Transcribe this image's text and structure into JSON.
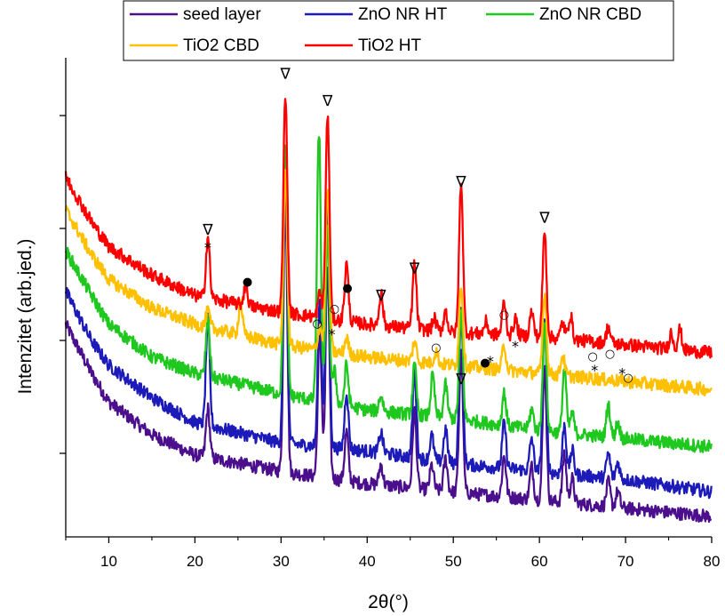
{
  "chart_data": {
    "type": "line",
    "title": "",
    "xlabel": "2θ(°)",
    "ylabel": "Intenzitet (arb.jed.)",
    "xlim": [
      5,
      80
    ],
    "ylim": [
      0,
      100
    ],
    "x_ticks": [
      10,
      20,
      30,
      40,
      50,
      60,
      70,
      80
    ],
    "x_tick_labels": [
      "10",
      "20",
      "30",
      "40",
      "50",
      "60",
      "70",
      "80"
    ],
    "y_tick_labels_shown": false,
    "grid": false,
    "legend": {
      "placement": "top",
      "entries": [
        "seed layer",
        "ZnO NR HT",
        "ZnO NR CBD",
        "TiO2 CBD",
        "TiO2 HT"
      ]
    },
    "series": [
      {
        "name": "seed layer",
        "color": "#4b0e8c",
        "baseline": [
          [
            5,
            52
          ],
          [
            8,
            40
          ],
          [
            10,
            33
          ],
          [
            15,
            25
          ],
          [
            20,
            20
          ],
          [
            30,
            16
          ],
          [
            40,
            13
          ],
          [
            50,
            11
          ],
          [
            60,
            9
          ],
          [
            70,
            7
          ],
          [
            80,
            5
          ]
        ],
        "peaks": [
          [
            21.5,
            12
          ],
          [
            30.5,
            68
          ],
          [
            34.5,
            36
          ],
          [
            35.4,
            52
          ],
          [
            37.6,
            12
          ],
          [
            41.6,
            5
          ],
          [
            45.5,
            19
          ],
          [
            47.5,
            6
          ],
          [
            49.1,
            8
          ],
          [
            50.9,
            34
          ],
          [
            55.9,
            10
          ],
          [
            59.1,
            8
          ],
          [
            60.6,
            33
          ],
          [
            62.9,
            12
          ],
          [
            63.8,
            6
          ],
          [
            68.0,
            6
          ],
          [
            69.1,
            4
          ]
        ]
      },
      {
        "name": "ZnO NR HT",
        "color": "#1c1ab8",
        "baseline": [
          [
            5,
            60
          ],
          [
            8,
            48
          ],
          [
            10,
            42
          ],
          [
            15,
            34
          ],
          [
            20,
            28
          ],
          [
            30,
            23
          ],
          [
            40,
            21
          ],
          [
            50,
            18
          ],
          [
            60,
            16
          ],
          [
            70,
            14
          ],
          [
            80,
            11
          ]
        ],
        "peaks": [
          [
            21.5,
            26
          ],
          [
            30.5,
            72
          ],
          [
            34.5,
            36
          ],
          [
            35.4,
            58
          ],
          [
            37.6,
            14
          ],
          [
            41.6,
            5
          ],
          [
            45.5,
            21
          ],
          [
            47.5,
            6
          ],
          [
            49.1,
            8
          ],
          [
            50.9,
            38
          ],
          [
            55.9,
            11
          ],
          [
            59.1,
            8
          ],
          [
            60.6,
            38
          ],
          [
            62.9,
            12
          ],
          [
            63.8,
            6
          ],
          [
            68.0,
            6
          ],
          [
            69.1,
            4
          ]
        ]
      },
      {
        "name": "ZnO NR CBD",
        "color": "#1ec81e",
        "baseline": [
          [
            5,
            70
          ],
          [
            8,
            59
          ],
          [
            10,
            52
          ],
          [
            15,
            44
          ],
          [
            20,
            40
          ],
          [
            30,
            35
          ],
          [
            40,
            31
          ],
          [
            50,
            29
          ],
          [
            60,
            26
          ],
          [
            70,
            24
          ],
          [
            80,
            22
          ]
        ],
        "peaks": [
          [
            21.5,
            14
          ],
          [
            30.5,
            60
          ],
          [
            34.4,
            66
          ],
          [
            35.4,
            42
          ],
          [
            36.2,
            8
          ],
          [
            37.6,
            10
          ],
          [
            41.6,
            4
          ],
          [
            45.5,
            12
          ],
          [
            47.6,
            10
          ],
          [
            49.1,
            8
          ],
          [
            50.9,
            26
          ],
          [
            55.9,
            8
          ],
          [
            59.1,
            5
          ],
          [
            60.6,
            26
          ],
          [
            62.9,
            16
          ],
          [
            63.8,
            5
          ],
          [
            68.0,
            8
          ],
          [
            69.1,
            4
          ]
        ]
      },
      {
        "name": "TiO2 CBD",
        "color": "#ffc000",
        "baseline": [
          [
            5,
            80
          ],
          [
            8,
            69
          ],
          [
            10,
            63
          ],
          [
            15,
            56
          ],
          [
            20,
            52
          ],
          [
            30,
            47
          ],
          [
            40,
            44
          ],
          [
            50,
            42
          ],
          [
            60,
            40
          ],
          [
            70,
            38
          ],
          [
            80,
            36
          ]
        ],
        "peaks": [
          [
            21.5,
            4
          ],
          [
            25.3,
            8
          ],
          [
            30.5,
            42
          ],
          [
            34.5,
            6
          ],
          [
            35.4,
            40
          ],
          [
            37.6,
            4
          ],
          [
            45.5,
            5
          ],
          [
            48.0,
            3
          ],
          [
            50.9,
            20
          ],
          [
            55.9,
            6
          ],
          [
            60.6,
            20
          ],
          [
            62.7,
            5
          ]
        ]
      },
      {
        "name": "TiO2 HT",
        "color": "#ff0000",
        "baseline": [
          [
            5,
            88
          ],
          [
            8,
            77
          ],
          [
            10,
            71
          ],
          [
            15,
            64
          ],
          [
            20,
            59
          ],
          [
            30,
            55
          ],
          [
            40,
            52
          ],
          [
            50,
            50
          ],
          [
            60,
            49
          ],
          [
            70,
            47
          ],
          [
            80,
            45
          ]
        ],
        "peaks": [
          [
            21.5,
            15
          ],
          [
            25.9,
            5
          ],
          [
            30.5,
            54
          ],
          [
            34.5,
            6
          ],
          [
            35.4,
            50
          ],
          [
            37.6,
            14
          ],
          [
            41.6,
            8
          ],
          [
            45.5,
            16
          ],
          [
            47.8,
            3
          ],
          [
            49.1,
            5
          ],
          [
            50.9,
            37
          ],
          [
            53.8,
            3
          ],
          [
            55.9,
            8
          ],
          [
            57.2,
            4
          ],
          [
            59.1,
            6
          ],
          [
            60.6,
            26
          ],
          [
            62.7,
            4
          ],
          [
            63.6,
            6
          ],
          [
            68.0,
            4
          ],
          [
            75.3,
            4
          ],
          [
            76.3,
            5
          ]
        ]
      }
    ],
    "annotations": [
      {
        "symbol": "∇",
        "x": 21.5,
        "y": 91
      },
      {
        "symbol": "*",
        "x": 21.5,
        "y": 85
      },
      {
        "symbol": "∇",
        "x": 30.5,
        "y": 143
      },
      {
        "symbol": "∇",
        "x": 35.4,
        "y": 134
      },
      {
        "symbol": "∇",
        "x": 41.6,
        "y": 69
      },
      {
        "symbol": "∇",
        "x": 45.5,
        "y": 78
      },
      {
        "symbol": "∇",
        "x": 50.9,
        "y": 107
      },
      {
        "symbol": "∇",
        "x": 50.9,
        "y": 41
      },
      {
        "symbol": "∇",
        "x": 60.6,
        "y": 95
      },
      {
        "symbol": "●",
        "x": 26.1,
        "y": 74
      },
      {
        "symbol": "●",
        "x": 37.7,
        "y": 72
      },
      {
        "symbol": "●",
        "x": 53.7,
        "y": 47
      },
      {
        "symbol": "○",
        "x": 34.2,
        "y": 60
      },
      {
        "symbol": "○",
        "x": 36.2,
        "y": 65
      },
      {
        "symbol": "○",
        "x": 48.0,
        "y": 52
      },
      {
        "symbol": "○",
        "x": 55.9,
        "y": 63
      },
      {
        "symbol": "○",
        "x": 66.2,
        "y": 49
      },
      {
        "symbol": "○",
        "x": 68.2,
        "y": 50
      },
      {
        "symbol": "○",
        "x": 70.3,
        "y": 42
      },
      {
        "symbol": "*",
        "x": 35.9,
        "y": 56
      },
      {
        "symbol": "*",
        "x": 54.3,
        "y": 47
      },
      {
        "symbol": "*",
        "x": 57.2,
        "y": 52
      },
      {
        "symbol": "*",
        "x": 66.4,
        "y": 44
      },
      {
        "symbol": "*",
        "x": 69.6,
        "y": 43
      }
    ]
  }
}
